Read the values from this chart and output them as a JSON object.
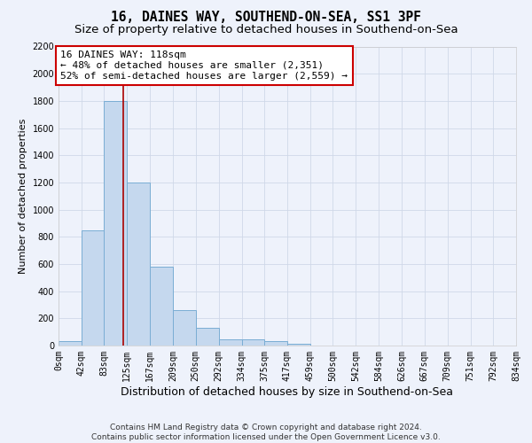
{
  "title1": "16, DAINES WAY, SOUTHEND-ON-SEA, SS1 3PF",
  "title2": "Size of property relative to detached houses in Southend-on-Sea",
  "xlabel": "Distribution of detached houses by size in Southend-on-Sea",
  "ylabel": "Number of detached properties",
  "bar_color": "#c5d8ee",
  "bar_edge_color": "#7aadd4",
  "background_color": "#eef2fb",
  "grid_color": "#d0d8e8",
  "bin_edges": [
    0,
    42,
    83,
    125,
    167,
    209,
    250,
    292,
    334,
    375,
    417,
    459,
    500,
    542,
    584,
    626,
    667,
    709,
    751,
    792,
    834
  ],
  "bar_heights": [
    30,
    850,
    1800,
    1200,
    580,
    260,
    130,
    45,
    45,
    30,
    15,
    0,
    0,
    0,
    0,
    0,
    0,
    0,
    0,
    0
  ],
  "red_line_x": 118,
  "annotation_line1": "16 DAINES WAY: 118sqm",
  "annotation_line2": "← 48% of detached houses are smaller (2,351)",
  "annotation_line3": "52% of semi-detached houses are larger (2,559) →",
  "annotation_box_color": "#ffffff",
  "annotation_border_color": "#cc0000",
  "ylim": [
    0,
    2200
  ],
  "yticks": [
    0,
    200,
    400,
    600,
    800,
    1000,
    1200,
    1400,
    1600,
    1800,
    2000,
    2200
  ],
  "tick_labels": [
    "0sqm",
    "42sqm",
    "83sqm",
    "125sqm",
    "167sqm",
    "209sqm",
    "250sqm",
    "292sqm",
    "334sqm",
    "375sqm",
    "417sqm",
    "459sqm",
    "500sqm",
    "542sqm",
    "584sqm",
    "626sqm",
    "667sqm",
    "709sqm",
    "751sqm",
    "792sqm",
    "834sqm"
  ],
  "footnote": "Contains HM Land Registry data © Crown copyright and database right 2024.\nContains public sector information licensed under the Open Government Licence v3.0.",
  "red_line_color": "#aa0000",
  "title1_fontsize": 10.5,
  "title2_fontsize": 9.5,
  "xlabel_fontsize": 9,
  "ylabel_fontsize": 8,
  "tick_fontsize": 7,
  "annotation_fontsize": 8,
  "footnote_fontsize": 6.5
}
